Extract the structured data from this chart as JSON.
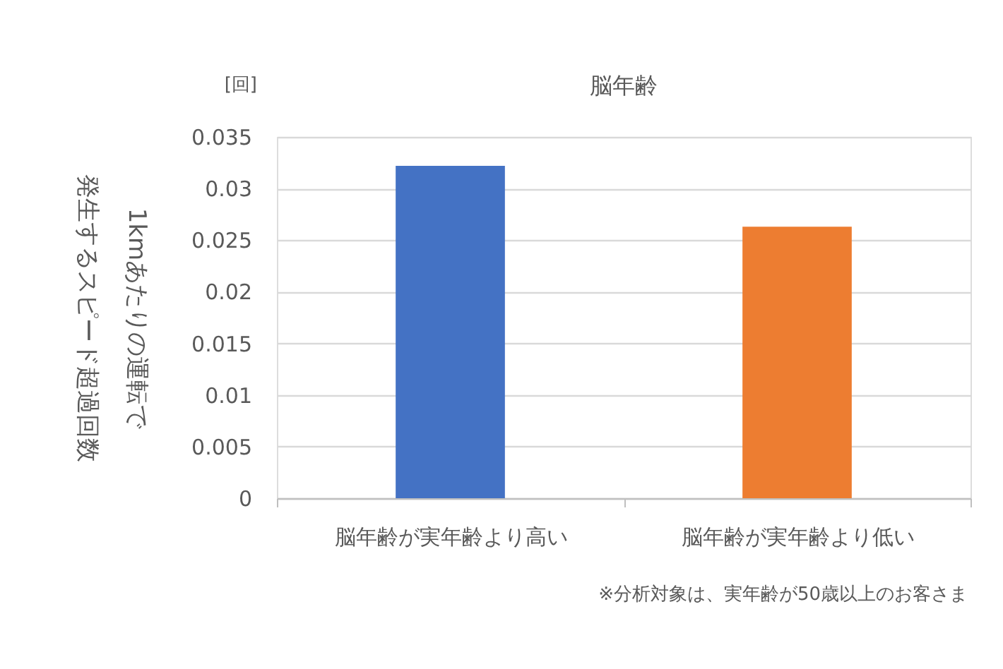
{
  "chart_data": {
    "type": "bar",
    "title": "脳年齢",
    "categories": [
      "脳年齢が実年齢より高い",
      "脳年齢が実年齢より低い"
    ],
    "values": [
      0.0322,
      0.0263
    ],
    "colors": [
      "#4472c4",
      "#ed7d31"
    ],
    "ylabel": "1kmあたりの運転で発生するスピード超過回数",
    "ylim": [
      0,
      0.035
    ],
    "yticks": [
      0,
      0.005,
      0.01,
      0.015,
      0.02,
      0.025,
      0.03,
      0.035
    ],
    "grid": "y",
    "annotations": [
      "[回]",
      "※分析対象は、実年齢が50歳以上のお客さま"
    ]
  }
}
